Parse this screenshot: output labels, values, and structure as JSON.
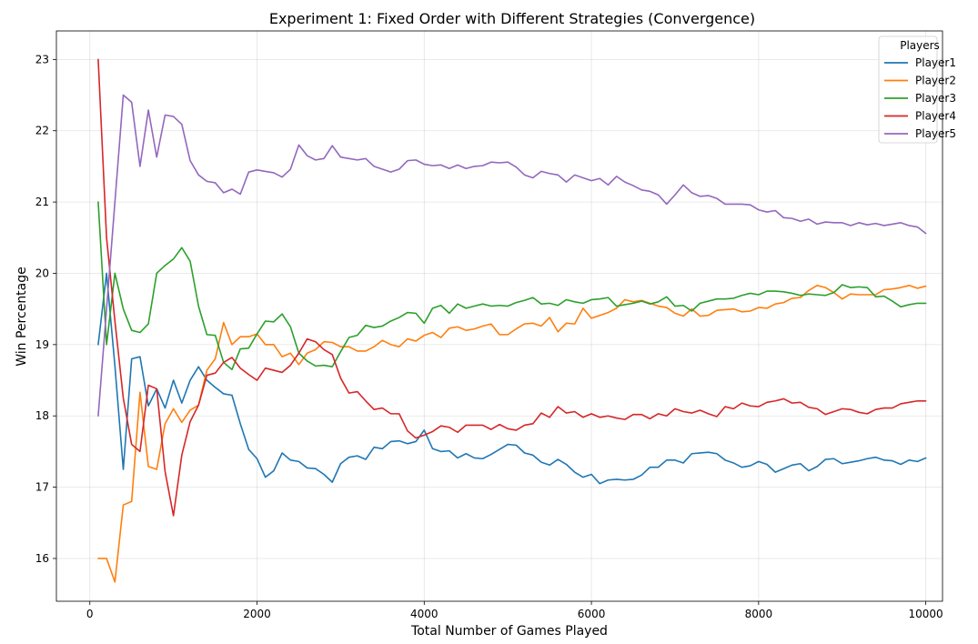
{
  "chart_data": {
    "type": "line",
    "title": "Experiment 1: Fixed Order with Different Strategies (Convergence)",
    "xlabel": "Total Number of Games Played",
    "ylabel": "Win Percentage",
    "xlim": [
      -400,
      10200
    ],
    "ylim": [
      15.4,
      23.4
    ],
    "xticks": [
      0,
      2000,
      4000,
      6000,
      8000,
      10000
    ],
    "yticks": [
      16,
      17,
      18,
      19,
      20,
      21,
      22,
      23
    ],
    "grid": true,
    "legend": {
      "title": "Players",
      "location": "top-right"
    },
    "x": [
      100,
      200,
      300,
      400,
      500,
      600,
      700,
      800,
      900,
      1000,
      1100,
      1200,
      1300,
      1400,
      1500,
      1600,
      1700,
      1800,
      1900,
      2000,
      2100,
      2200,
      2300,
      2400,
      2500,
      2600,
      2700,
      2800,
      2900,
      3000,
      3100,
      3200,
      3300,
      3400,
      3500,
      3600,
      3700,
      3800,
      3900,
      4000,
      4100,
      4200,
      4300,
      4400,
      4500,
      4600,
      4700,
      4800,
      4900,
      5000,
      5100,
      5200,
      5300,
      5400,
      5500,
      5600,
      5700,
      5800,
      5900,
      6000,
      6100,
      6200,
      6300,
      6400,
      6500,
      6600,
      6700,
      6800,
      6900,
      7000,
      7100,
      7200,
      7300,
      7400,
      7500,
      7600,
      7700,
      7800,
      7900,
      8000,
      8100,
      8200,
      8300,
      8400,
      8500,
      8600,
      8700,
      8800,
      8900,
      9000,
      9100,
      9200,
      9300,
      9400,
      9500,
      9600,
      9700,
      9800,
      9900,
      10000
    ],
    "series": [
      {
        "name": "Player1",
        "color": "#1f77b4",
        "values": [
          19.0,
          20.0,
          18.7,
          17.25,
          18.8,
          18.83,
          18.14,
          18.38,
          18.11,
          18.5,
          18.18,
          18.5,
          18.69,
          18.5,
          18.4,
          18.31,
          18.29,
          17.89,
          17.53,
          17.4,
          17.14,
          17.23,
          17.48,
          17.38,
          17.36,
          17.27,
          17.26,
          17.18,
          17.07,
          17.33,
          17.42,
          17.44,
          17.39,
          17.56,
          17.54,
          17.64,
          17.65,
          17.61,
          17.64,
          17.8,
          17.54,
          17.5,
          17.51,
          17.41,
          17.47,
          17.41,
          17.4,
          17.46,
          17.53,
          17.6,
          17.59,
          17.48,
          17.45,
          17.35,
          17.31,
          17.39,
          17.32,
          17.21,
          17.14,
          17.18,
          17.05,
          17.1,
          17.11,
          17.1,
          17.11,
          17.17,
          17.28,
          17.28,
          17.38,
          17.38,
          17.34,
          17.47,
          17.48,
          17.49,
          17.47,
          17.38,
          17.34,
          17.28,
          17.3,
          17.36,
          17.32,
          17.21,
          17.26,
          17.31,
          17.33,
          17.23,
          17.29,
          17.39,
          17.4,
          17.33,
          17.35,
          17.37,
          17.4,
          17.42,
          17.38,
          17.37,
          17.32,
          17.38,
          17.36,
          17.41
        ]
      },
      {
        "name": "Player2",
        "color": "#ff7f0e",
        "values": [
          16.0,
          16.0,
          15.67,
          16.75,
          16.8,
          18.33,
          17.29,
          17.25,
          17.89,
          18.1,
          17.91,
          18.08,
          18.15,
          18.64,
          18.8,
          19.31,
          19.0,
          19.11,
          19.11,
          19.15,
          19.0,
          19.0,
          18.83,
          18.88,
          18.72,
          18.88,
          18.93,
          19.04,
          19.03,
          18.97,
          18.97,
          18.91,
          18.91,
          18.97,
          19.06,
          19.0,
          18.97,
          19.08,
          19.05,
          19.13,
          19.17,
          19.1,
          19.23,
          19.25,
          19.2,
          19.22,
          19.26,
          19.29,
          19.14,
          19.14,
          19.22,
          19.29,
          19.3,
          19.26,
          19.38,
          19.18,
          19.3,
          19.29,
          19.51,
          19.37,
          19.41,
          19.45,
          19.51,
          19.63,
          19.6,
          19.62,
          19.58,
          19.54,
          19.52,
          19.44,
          19.4,
          19.5,
          19.4,
          19.41,
          19.48,
          19.49,
          19.5,
          19.46,
          19.47,
          19.52,
          19.51,
          19.57,
          19.59,
          19.65,
          19.66,
          19.76,
          19.83,
          19.8,
          19.73,
          19.64,
          19.71,
          19.7,
          19.7,
          19.7,
          19.77,
          19.78,
          19.8,
          19.83,
          19.79,
          19.82
        ]
      },
      {
        "name": "Player3",
        "color": "#2ca02c",
        "values": [
          21.0,
          19.0,
          20.0,
          19.5,
          19.2,
          19.17,
          19.29,
          20.0,
          20.11,
          20.2,
          20.36,
          20.17,
          19.54,
          19.14,
          19.13,
          18.75,
          18.65,
          18.94,
          18.95,
          19.15,
          19.33,
          19.32,
          19.43,
          19.25,
          18.88,
          18.77,
          18.7,
          18.71,
          18.69,
          18.9,
          19.1,
          19.13,
          19.27,
          19.24,
          19.26,
          19.33,
          19.38,
          19.45,
          19.44,
          19.3,
          19.51,
          19.55,
          19.44,
          19.57,
          19.51,
          19.54,
          19.57,
          19.54,
          19.55,
          19.54,
          19.59,
          19.62,
          19.66,
          19.57,
          19.58,
          19.55,
          19.63,
          19.6,
          19.58,
          19.63,
          19.64,
          19.66,
          19.54,
          19.56,
          19.58,
          19.61,
          19.57,
          19.6,
          19.67,
          19.54,
          19.55,
          19.47,
          19.58,
          19.61,
          19.64,
          19.64,
          19.65,
          19.69,
          19.72,
          19.7,
          19.75,
          19.75,
          19.74,
          19.72,
          19.69,
          19.71,
          19.7,
          19.69,
          19.73,
          19.84,
          19.8,
          19.81,
          19.8,
          19.67,
          19.68,
          19.61,
          19.53,
          19.56,
          19.58,
          19.58
        ]
      },
      {
        "name": "Player4",
        "color": "#d62728",
        "values": [
          23.0,
          20.5,
          19.33,
          18.25,
          17.6,
          17.5,
          18.43,
          18.38,
          17.22,
          16.6,
          17.45,
          17.92,
          18.15,
          18.57,
          18.6,
          18.75,
          18.82,
          18.67,
          18.58,
          18.5,
          18.67,
          18.64,
          18.61,
          18.71,
          18.88,
          19.08,
          19.04,
          18.93,
          18.86,
          18.53,
          18.32,
          18.34,
          18.21,
          18.09,
          18.11,
          18.03,
          18.03,
          17.79,
          17.69,
          17.73,
          17.78,
          17.86,
          17.84,
          17.77,
          17.87,
          17.87,
          17.87,
          17.81,
          17.88,
          17.82,
          17.8,
          17.87,
          17.89,
          18.04,
          17.98,
          18.13,
          18.04,
          18.06,
          17.98,
          18.03,
          17.98,
          18.0,
          17.97,
          17.95,
          18.02,
          18.02,
          17.96,
          18.03,
          18.0,
          18.1,
          18.06,
          18.04,
          18.08,
          18.03,
          17.99,
          18.13,
          18.1,
          18.18,
          18.14,
          18.13,
          18.19,
          18.21,
          18.24,
          18.18,
          18.19,
          18.12,
          18.1,
          18.02,
          18.06,
          18.1,
          18.09,
          18.05,
          18.03,
          18.09,
          18.11,
          18.11,
          18.17,
          18.19,
          18.21,
          18.21
        ]
      },
      {
        "name": "Player5",
        "color": "#9467bd",
        "values": [
          18.0,
          19.5,
          21.0,
          22.5,
          22.4,
          21.5,
          22.29,
          21.63,
          22.22,
          22.2,
          22.09,
          21.58,
          21.38,
          21.29,
          21.27,
          21.13,
          21.18,
          21.11,
          21.42,
          21.45,
          21.43,
          21.41,
          21.35,
          21.46,
          21.8,
          21.65,
          21.59,
          21.61,
          21.79,
          21.63,
          21.61,
          21.59,
          21.61,
          21.5,
          21.46,
          21.42,
          21.46,
          21.58,
          21.59,
          21.53,
          21.51,
          21.52,
          21.47,
          21.52,
          21.47,
          21.5,
          21.51,
          21.56,
          21.55,
          21.56,
          21.49,
          21.38,
          21.34,
          21.43,
          21.4,
          21.38,
          21.28,
          21.38,
          21.34,
          21.3,
          21.33,
          21.24,
          21.36,
          21.28,
          21.23,
          21.17,
          21.15,
          21.1,
          20.97,
          21.1,
          21.24,
          21.13,
          21.08,
          21.09,
          21.05,
          20.97,
          20.97,
          20.97,
          20.96,
          20.89,
          20.86,
          20.88,
          20.78,
          20.77,
          20.73,
          20.76,
          20.69,
          20.72,
          20.71,
          20.71,
          20.67,
          20.71,
          20.68,
          20.7,
          20.67,
          20.69,
          20.71,
          20.67,
          20.65,
          20.56
        ]
      }
    ]
  }
}
